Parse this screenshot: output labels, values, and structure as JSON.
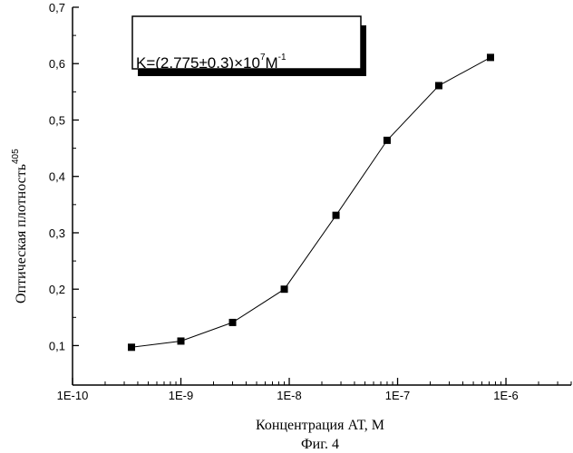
{
  "chart_data": {
    "type": "line",
    "x_scale": "log",
    "x": [
      3.5e-10,
      1e-09,
      3e-09,
      9e-09,
      2.7e-08,
      8e-08,
      2.4e-07,
      7.2e-07
    ],
    "series": [
      {
        "values": [
          0.097,
          0.108,
          0.141,
          0.2,
          0.331,
          0.464,
          0.561,
          0.611
        ]
      }
    ],
    "xlim": [
      1e-10,
      4e-06
    ],
    "ylim": [
      0.03,
      0.7
    ],
    "xticks": [
      1e-10,
      1e-09,
      1e-08,
      1e-07,
      1e-06
    ],
    "xtick_labels": [
      "1E-10",
      "1E-9",
      "1E-8",
      "1E-7",
      "1E-6"
    ],
    "yticks": [
      0.1,
      0.2,
      0.3,
      0.4,
      0.5,
      0.6,
      0.7
    ],
    "ytick_labels": [
      "0,1",
      "0,2",
      "0,3",
      "0,4",
      "0,5",
      "0,6",
      "0,7"
    ],
    "xlabel": "Концентрация АТ, М",
    "ylabel": "Оптическая плотность",
    "ylabel_superscript": "405",
    "caption": "Фиг. 4",
    "annotation": {
      "main": "K=(2.775±0.3)×10",
      "exp1": "7",
      "unit": "M",
      "exp2": "-1"
    },
    "marker": "square",
    "grid": false
  }
}
